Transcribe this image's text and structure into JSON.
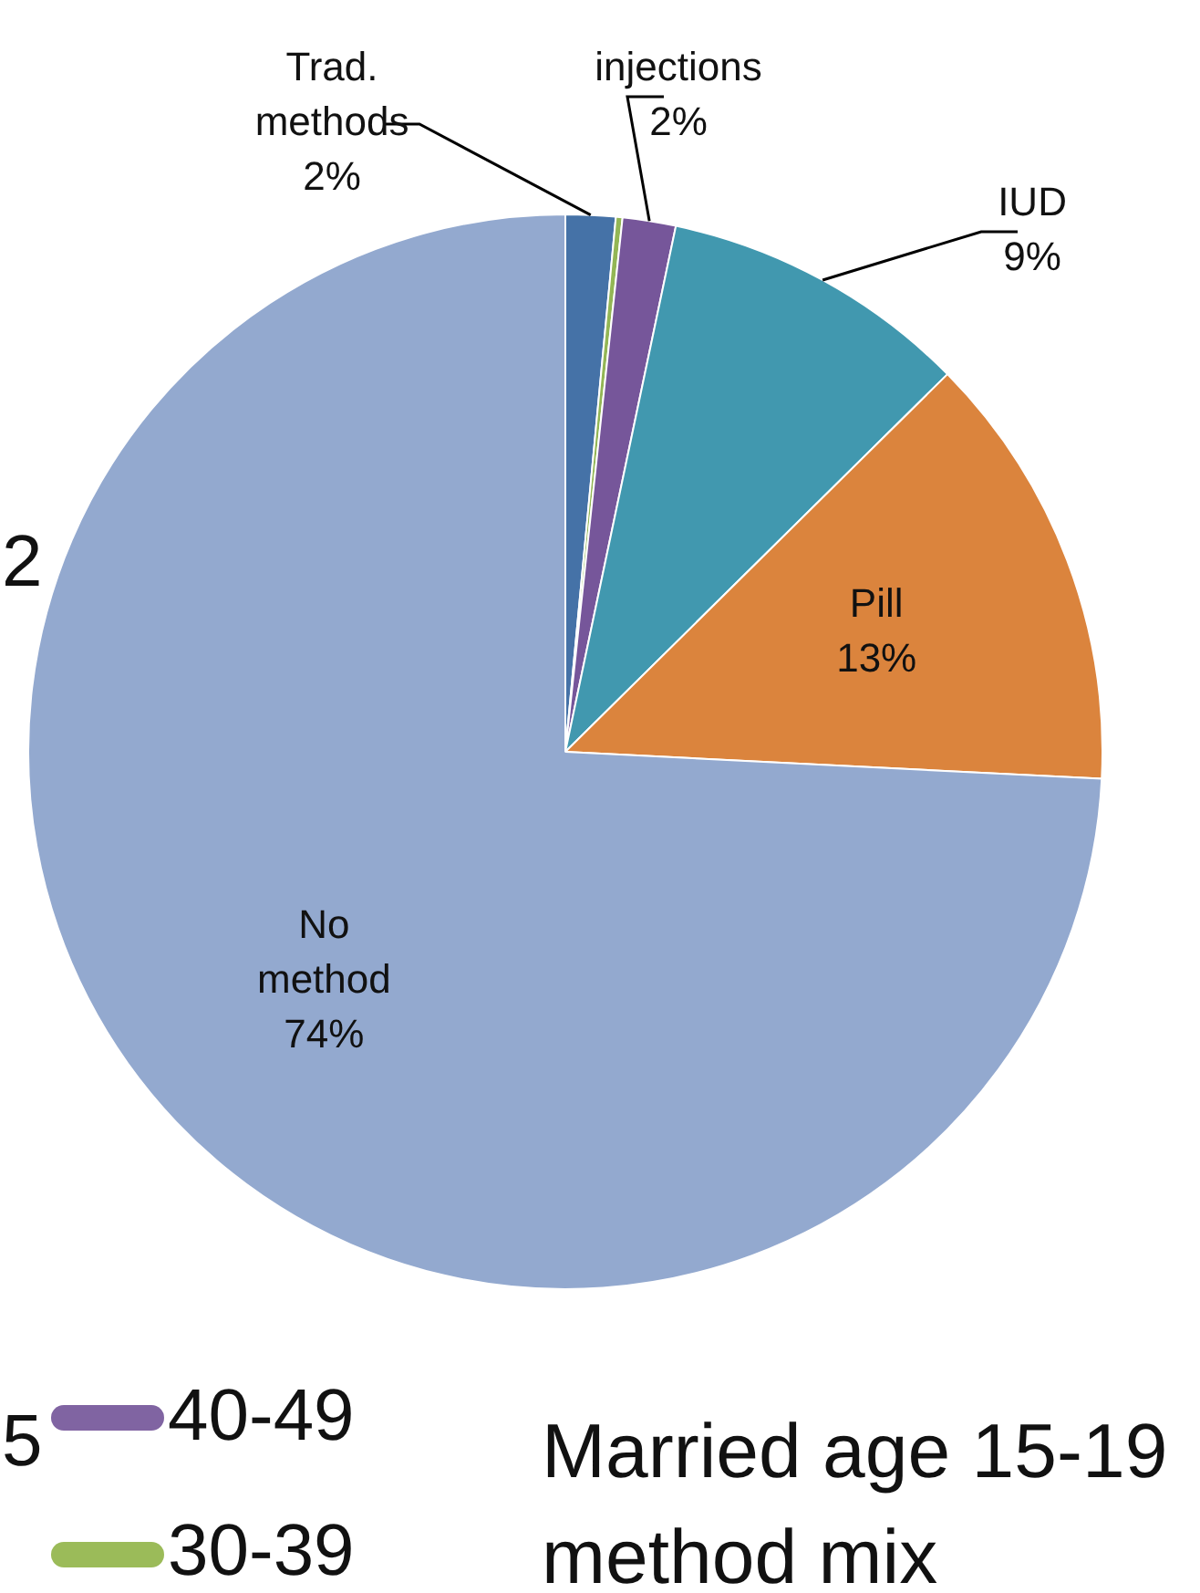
{
  "chart_data": {
    "type": "pie",
    "title": "Married age 15-19 method mix",
    "categories": [
      "Trad. methods",
      null,
      "injections",
      "IUD",
      "Pill",
      "No method"
    ],
    "values": [
      1.5,
      0.2,
      1.6,
      9.3,
      13.2,
      74.2
    ],
    "colors": [
      "#4572a7",
      "#93b655",
      "#76569a",
      "#4198af",
      "#db843d",
      "#93a9cf"
    ],
    "value_labels": [
      "2%",
      null,
      "2%",
      "9%",
      "13%",
      "74%"
    ],
    "legend": false,
    "annotations": [
      "2",
      "5",
      "40-49",
      "30-39"
    ]
  }
}
